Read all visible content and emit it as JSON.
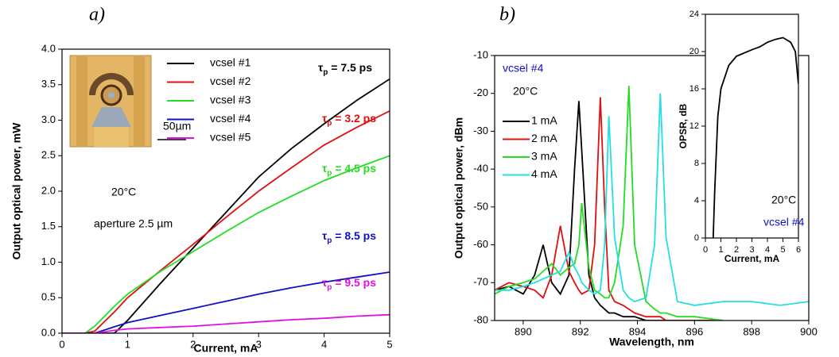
{
  "chart_data": [
    {
      "type": "line",
      "panel_label": "a)",
      "x_label": "Current, mA",
      "y_label": "Output optical power, mW",
      "x": [
        0,
        0.35,
        0.5,
        0.8,
        1,
        1.5,
        2,
        2.5,
        3,
        3.5,
        4,
        4.5,
        5
      ],
      "series": [
        {
          "name": "vcsel #1",
          "color": "#000000",
          "values": [
            0,
            0,
            0,
            0,
            0.18,
            0.7,
            1.2,
            1.7,
            2.2,
            2.6,
            2.95,
            3.28,
            3.58
          ]
        },
        {
          "name": "vcsel #2",
          "color": "#e01010",
          "values": [
            0,
            0,
            0.03,
            0.3,
            0.5,
            0.88,
            1.25,
            1.63,
            2.0,
            2.33,
            2.65,
            2.9,
            3.13
          ]
        },
        {
          "name": "vcsel #3",
          "color": "#22dd22",
          "values": [
            0,
            0,
            0.1,
            0.38,
            0.55,
            0.87,
            1.15,
            1.43,
            1.7,
            1.93,
            2.15,
            2.33,
            2.5
          ]
        },
        {
          "name": "vcsel #4",
          "color": "#1010c0",
          "values": [
            0,
            0,
            0,
            0.09,
            0.15,
            0.25,
            0.35,
            0.45,
            0.55,
            0.64,
            0.72,
            0.79,
            0.86
          ]
        },
        {
          "name": "vcsel #5",
          "color": "#e010e0",
          "values": [
            0,
            0,
            0,
            0.04,
            0.06,
            0.08,
            0.1,
            0.13,
            0.16,
            0.19,
            0.21,
            0.24,
            0.26
          ]
        }
      ],
      "xlim": [
        0,
        5
      ],
      "xticks": [
        0,
        1,
        2,
        3,
        4,
        5
      ],
      "ylim": [
        0,
        4
      ],
      "yticks": [
        {
          "value": 0,
          "label": "0.0"
        },
        0.5,
        {
          "value": 1,
          "label": "1.0"
        },
        1.5,
        {
          "value": 2,
          "label": "2.0"
        },
        2.5,
        {
          "value": 3,
          "label": "3.0"
        },
        3.5,
        {
          "value": 4,
          "label": "4.0"
        }
      ],
      "annotations": [
        {
          "symbol": "τ",
          "sub": "p",
          "rest": " = 7.5 ps",
          "color": "#000000"
        },
        {
          "symbol": "τ",
          "sub": "p",
          "rest": " = 3.2 ps",
          "color": "#e01010"
        },
        {
          "symbol": "τ",
          "sub": "p",
          "rest": " = 4.5 ps",
          "color": "#22dd22"
        },
        {
          "symbol": "τ",
          "sub": "p",
          "rest": " = 8.5 ps",
          "color": "#1010c0"
        },
        {
          "symbol": "τ",
          "sub": "p",
          "rest": " = 9.5 ps",
          "color": "#e010e0"
        },
        {
          "text": "20°C",
          "color": "#000000"
        },
        {
          "text": "aperture 2.5 µm",
          "color": "#000000"
        },
        {
          "text": "50µm",
          "color": "#000000"
        }
      ]
    },
    {
      "type": "line",
      "panel_label": "b)",
      "x_label": "Wavelength, nm",
      "y_label": "Output optical power, dBm",
      "x": [
        889,
        889.5,
        890,
        890.4,
        890.7,
        891,
        891.3,
        891.6,
        891.8,
        891.95,
        892.05,
        892.3,
        892.5,
        892.7,
        892.85,
        893,
        893.2,
        893.5,
        893.7,
        893.9,
        894.3,
        894.6,
        894.8,
        895,
        895.4,
        896,
        897,
        898,
        899,
        900
      ],
      "series": [
        {
          "name": "1 mA",
          "color": "#000000",
          "values": [
            -72,
            -71,
            -73,
            -68,
            -60,
            -70,
            -73,
            -68,
            -40,
            -22,
            -35,
            -68,
            -74,
            -76,
            -77,
            -78,
            -78,
            -79,
            -79,
            -79,
            -80,
            -80,
            -80,
            -80,
            -80,
            -80,
            -80,
            null,
            null,
            null
          ]
        },
        {
          "name": "2 mA",
          "color": "#e01010",
          "values": [
            -72,
            -70,
            -71,
            -72,
            -74,
            -68,
            -55,
            -67,
            -70,
            -72,
            -73,
            -72,
            -60,
            -21,
            -50,
            -72,
            -75,
            -76,
            -77,
            -78,
            -79,
            -79,
            -79,
            -80,
            -80,
            -80,
            -80,
            null,
            null,
            null
          ]
        },
        {
          "name": "3 mA",
          "color": "#22dd22",
          "values": [
            -73,
            -71,
            -70,
            -69,
            -67,
            -65,
            -68,
            -66,
            -65,
            -60,
            -49,
            -66,
            -72,
            -73,
            -74,
            -74,
            -70,
            -55,
            -18,
            -60,
            -75,
            -77,
            -78,
            -78,
            -79,
            -79,
            -80,
            null,
            null,
            null
          ]
        },
        {
          "name": "4 mA",
          "color": "#22e0e0",
          "values": [
            -72,
            -72,
            -71,
            -70,
            -69,
            -68,
            -67,
            -62,
            -66,
            -68,
            -70,
            -72,
            -73,
            -72,
            -60,
            -26,
            -58,
            -72,
            -74,
            -75,
            -74,
            -60,
            -20,
            -58,
            -75,
            -76,
            -75,
            -75,
            -76,
            -75
          ]
        }
      ],
      "xlim": [
        889,
        900
      ],
      "xticks": [
        890,
        892,
        894,
        896,
        898,
        900
      ],
      "ylim": [
        -80,
        -10
      ],
      "yticks": [
        -80,
        -70,
        -60,
        -50,
        -40,
        -30,
        -20,
        -10
      ],
      "annotations": [
        {
          "text": "vcsel #4",
          "color": "#1010c0"
        },
        {
          "text": "20°C",
          "color": "#000000"
        }
      ]
    },
    {
      "type": "line",
      "x_label": "Current, mA",
      "y_label": "OPSR, dB",
      "x": [
        0.5,
        0.6,
        0.8,
        1,
        1.5,
        2,
        3,
        3.5,
        4,
        4.5,
        5,
        5.5,
        5.8,
        6
      ],
      "series": [
        {
          "color": "#000000",
          "values": [
            0,
            5,
            13,
            16,
            18.5,
            19.5,
            20.2,
            20.5,
            21,
            21.3,
            21.5,
            21,
            20,
            16.5
          ]
        }
      ],
      "xlim": [
        0,
        6
      ],
      "xticks": [
        0,
        1,
        2,
        3,
        4,
        5,
        6
      ],
      "ylim": [
        0,
        24
      ],
      "yticks": [
        0,
        4,
        8,
        12,
        16,
        20,
        24
      ],
      "annotations": [
        {
          "text": "20°C",
          "color": "#000000"
        },
        {
          "text": "vcsel #4",
          "color": "#1010c0"
        }
      ]
    }
  ]
}
